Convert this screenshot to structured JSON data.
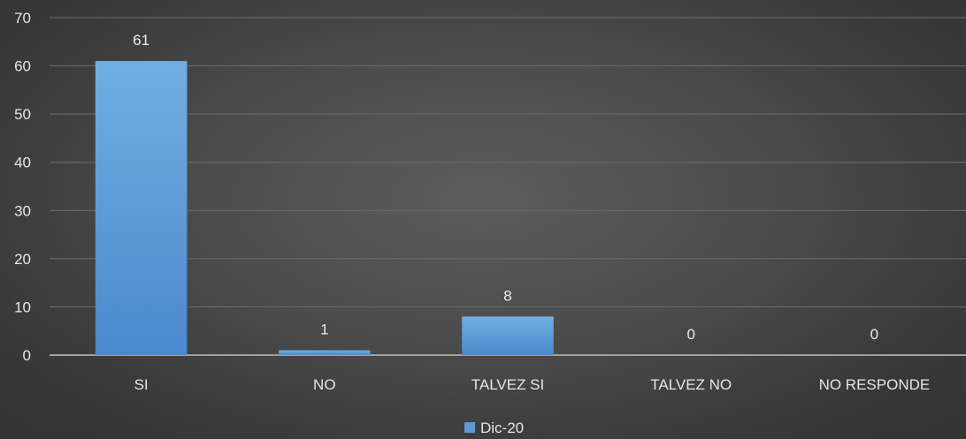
{
  "chart_data": {
    "type": "bar",
    "categories": [
      "SI",
      "NO",
      "TALVEZ SI",
      "TALVEZ NO",
      "NO RESPONDE"
    ],
    "series": [
      {
        "name": "Dic-20",
        "values": [
          61,
          1,
          8,
          0,
          0
        ],
        "color": "#5b9bd5"
      }
    ],
    "ylim": [
      0,
      70
    ],
    "yticks": [
      0,
      10,
      20,
      30,
      40,
      50,
      60,
      70
    ],
    "grid": true,
    "data_labels": true,
    "legend_position": "bottom"
  }
}
